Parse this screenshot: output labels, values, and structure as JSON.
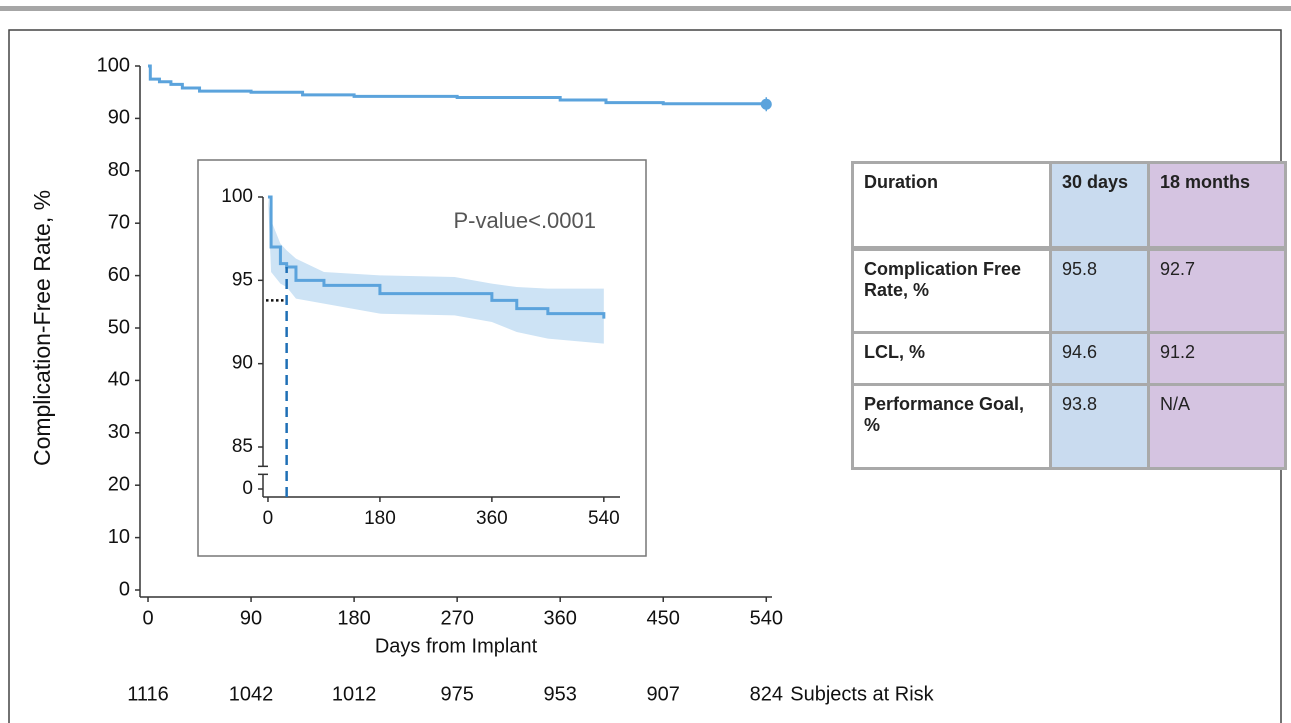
{
  "chart_data": [
    {
      "type": "line",
      "ylabel": "Complication-Free Rate, %",
      "xlabel": "Days from Implant",
      "x": [
        0,
        2,
        10,
        20,
        30,
        45,
        90,
        135,
        180,
        270,
        360,
        400,
        450,
        540
      ],
      "series": [
        {
          "color": "#5ba3dc",
          "values": [
            100,
            97.5,
            97,
            96.5,
            95.8,
            95.2,
            95,
            94.5,
            94.2,
            94,
            93.5,
            93,
            92.8,
            92.7
          ]
        }
      ],
      "xlim": [
        -7,
        545
      ],
      "ylim": [
        0,
        100
      ],
      "xticks": [
        0,
        90,
        180,
        270,
        360,
        450,
        540
      ],
      "yticks": [
        0,
        10,
        20,
        30,
        40,
        50,
        60,
        70,
        80,
        90,
        100
      ],
      "risk": {
        "label": "Subjects at Risk",
        "values": [
          1116,
          1042,
          1012,
          975,
          953,
          907,
          824
        ]
      }
    },
    {
      "type": "line",
      "annotation": "P-value<.0001",
      "x": [
        0,
        5,
        20,
        30,
        45,
        90,
        180,
        300,
        360,
        400,
        450,
        540
      ],
      "series": [
        {
          "color": "#5ba3dc",
          "band_color": "#cde3f5",
          "values": [
            100,
            97,
            96,
            95.8,
            95,
            94.7,
            94.2,
            94.2,
            93.8,
            93.3,
            93,
            92.7
          ],
          "upper": [
            100,
            98.6,
            97.2,
            96.8,
            96.3,
            95.5,
            95.3,
            95.2,
            94.8,
            94.6,
            94.5,
            94.5
          ],
          "lower": [
            100,
            95.5,
            94.8,
            94.6,
            93.9,
            93.6,
            93.0,
            92.9,
            92.5,
            91.9,
            91.5,
            91.2
          ]
        }
      ],
      "xlim": [
        -8,
        566
      ],
      "ylim": [
        82,
        100
      ],
      "xticks": [
        0,
        180,
        360,
        540
      ],
      "yticks": [
        0,
        85,
        90,
        95,
        100
      ],
      "axis_break": true,
      "reference_x": 30,
      "goal": 93.8
    }
  ],
  "table": {
    "header": [
      "Duration",
      "30 days",
      "18 months"
    ],
    "rows": [
      [
        "Complication Free Rate, %",
        "95.8",
        "92.7"
      ],
      [
        "LCL, %",
        "94.6",
        "91.2"
      ],
      [
        "Performance Goal, %",
        "93.8",
        "N/A"
      ]
    ]
  }
}
